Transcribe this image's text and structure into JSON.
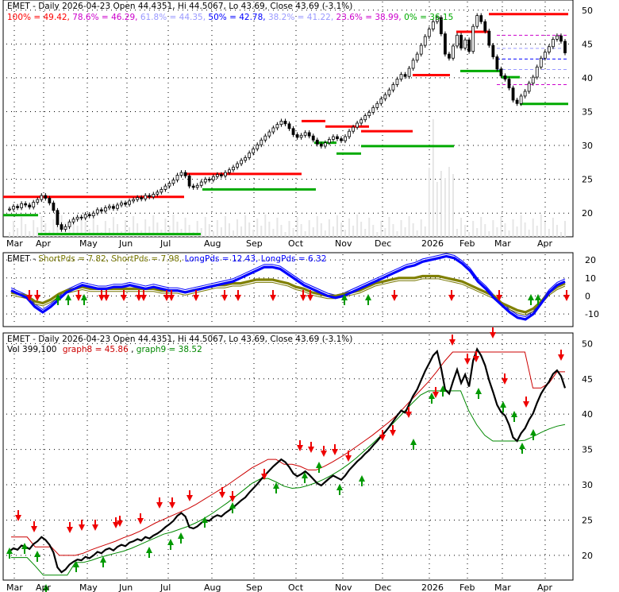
{
  "chart_data": [
    {
      "type": "candlestick",
      "ticker": "EMET",
      "header": {
        "title": "EMET - Daily 2026-04-23 Open 44.4351, Hi 44.5067, Lo 43.69, Close 43.69 (-3.1%)",
        "fib_levels": [
          {
            "text": "100% = 49.42",
            "color": "#ff0000"
          },
          {
            "text": "78.6% = 46.29",
            "color": "#cc00cc"
          },
          {
            "text": "61.8% = 44.35",
            "color": "#9999ff"
          },
          {
            "text": "50% = 42.78",
            "color": "#0000ff"
          },
          {
            "text": "38.2% = 41.22",
            "color": "#9999ff"
          },
          {
            "text": "23.6% = 38.99",
            "color": "#cc00cc"
          },
          {
            "text": "0% = 36.15",
            "color": "#00aa00"
          }
        ]
      },
      "y_ticks": [
        20,
        25,
        30,
        35,
        40,
        45,
        50
      ],
      "ylim": [
        16.5,
        51.5
      ],
      "x_labels": [
        "Mar",
        "Apr",
        "May",
        "Jun",
        "Jul",
        "Aug",
        "Sep",
        "Oct",
        "Nov",
        "Dec",
        "2026",
        "Feb",
        "Mar",
        "Apr"
      ],
      "grid": true,
      "closes": [
        20.6,
        21.0,
        20.8,
        21.4,
        21.2,
        20.9,
        21.6,
        22.0,
        22.6,
        22.2,
        21.5,
        20.4,
        18.3,
        17.6,
        18.0,
        18.7,
        19.1,
        19.4,
        19.3,
        19.8,
        19.6,
        20.0,
        20.5,
        20.3,
        20.8,
        21.0,
        20.7,
        21.2,
        21.5,
        21.3,
        21.8,
        22.0,
        22.3,
        22.1,
        22.6,
        22.4,
        22.8,
        23.1,
        23.5,
        24.0,
        24.4,
        24.9,
        25.6,
        26.0,
        25.5,
        24.0,
        23.8,
        24.1,
        24.6,
        25.0,
        24.9,
        25.4,
        25.7,
        25.5,
        26.0,
        26.4,
        26.8,
        27.3,
        27.8,
        28.2,
        28.9,
        29.5,
        30.1,
        30.8,
        31.4,
        32.0,
        32.6,
        33.1,
        33.6,
        33.2,
        32.5,
        31.6,
        31.2,
        31.5,
        31.9,
        31.4,
        30.8,
        30.2,
        29.9,
        30.4,
        30.9,
        31.3,
        31.0,
        30.7,
        31.3,
        32.1,
        32.7,
        33.3,
        33.8,
        34.4,
        34.9,
        35.6,
        36.2,
        36.9,
        37.5,
        38.2,
        39.0,
        39.8,
        40.5,
        40.2,
        41.4,
        42.6,
        43.5,
        44.8,
        46.1,
        47.2,
        48.3,
        48.9,
        46.5,
        43.5,
        42.9,
        44.7,
        46.3,
        44.4,
        45.6,
        43.9,
        47.6,
        49.2,
        48.3,
        46.9,
        44.8,
        43.1,
        41.3,
        40.3,
        39.8,
        38.5,
        36.7,
        36.2,
        37.3,
        38.0,
        39.2,
        40.1,
        41.6,
        42.9,
        43.8,
        44.6,
        45.7,
        46.2,
        45.4,
        43.69
      ],
      "fib_lines": [
        {
          "label": "100%",
          "value": 49.42,
          "color": "#ff0000"
        },
        {
          "label": "78.6%",
          "value": 46.29,
          "color": "#cc00cc"
        },
        {
          "label": "61.8%",
          "value": 44.35,
          "color": "#9999ff"
        },
        {
          "label": "50%",
          "value": 42.78,
          "color": "#0000ff"
        },
        {
          "label": "38.2%",
          "value": 41.22,
          "color": "#9999ff"
        },
        {
          "label": "23.6%",
          "value": 38.99,
          "color": "#cc00cc"
        },
        {
          "label": "0%",
          "value": 36.15,
          "color": "#00aa00"
        }
      ]
    },
    {
      "type": "line",
      "header": {
        "prefix": "EMET - ",
        "series": [
          {
            "text": "ShortPds = 7.82",
            "color": "#777700"
          },
          {
            "text": "ShortPds = 7.98",
            "color": "#777700"
          },
          {
            "text": "LongPds = 12.43",
            "color": "#0000ff"
          },
          {
            "text": "LongPds = 6.32",
            "color": "#0000ff"
          }
        ]
      },
      "y_ticks": [
        -10,
        0,
        10,
        20
      ],
      "ylim": [
        -17,
        24
      ],
      "long_line": [
        3,
        1,
        -1,
        -6,
        -9,
        -6,
        -2,
        2,
        4,
        6,
        5,
        4,
        4,
        5,
        5,
        6,
        5,
        4,
        5,
        4,
        3,
        3,
        2,
        3,
        4,
        5,
        6,
        7,
        8,
        10,
        12,
        14,
        16,
        16,
        15,
        12,
        9,
        6,
        4,
        2,
        0,
        -1,
        0,
        2,
        4,
        6,
        8,
        10,
        12,
        14,
        16,
        17,
        19,
        20,
        21,
        22,
        21,
        18,
        14,
        8,
        4,
        -1,
        -5,
        -9,
        -12,
        -13,
        -10,
        -4,
        2,
        6,
        8
      ],
      "short_line": [
        2,
        1,
        0,
        -3,
        -4,
        -2,
        1,
        3,
        4,
        5,
        4,
        4,
        4,
        4,
        4,
        4,
        4,
        4,
        4,
        3,
        3,
        3,
        2,
        3,
        4,
        5,
        6,
        6,
        7,
        7,
        8,
        9,
        9,
        9,
        8,
        7,
        5,
        4,
        2,
        1,
        0,
        0,
        1,
        2,
        3,
        5,
        7,
        8,
        9,
        10,
        10,
        10,
        11,
        11,
        11,
        10,
        9,
        8,
        6,
        4,
        2,
        0,
        -4,
        -6,
        -8,
        -9,
        -7,
        -3,
        2,
        5,
        7
      ],
      "x_labels": []
    },
    {
      "type": "line",
      "header": {
        "title": "EMET - Daily 2026-04-23 Open 44.4351, Hi 44.5067, Lo 43.69, Close 43.69 (-3.1%)",
        "vol": "Vol 399,100",
        "graph8": "graph8 = 45.86",
        "graph9": "graph9 = 38.52"
      },
      "y_ticks": [
        20,
        25,
        30,
        35,
        40,
        45,
        50
      ],
      "ylim": [
        16.5,
        51.5
      ],
      "x_labels": [
        "Mar",
        "Apr",
        "May",
        "Jun",
        "Jul",
        "Aug",
        "Sep",
        "Oct",
        "Nov",
        "Dec",
        "2026",
        "Feb",
        "Mar",
        "Apr"
      ],
      "series": [
        {
          "name": "graph8",
          "color": "#cc0000"
        },
        {
          "name": "graph9",
          "color": "#008800"
        }
      ]
    }
  ]
}
